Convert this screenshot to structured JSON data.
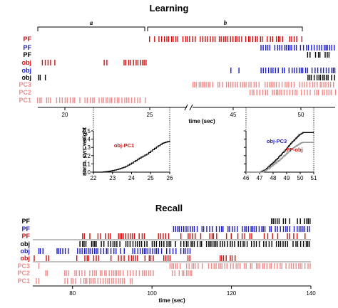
{
  "colors": {
    "pf": "#d01010",
    "pf_blue": "#1a1acc",
    "black": "#000000",
    "pink": "#f08a8a",
    "grey": "#999999"
  },
  "chart_data": [
    {
      "type": "raster",
      "title": "Learning",
      "phases": [
        {
          "label": "a",
          "x_range": [
            18.5,
            25
          ]
        },
        {
          "label": "b",
          "x_range": [
            25,
            50
          ]
        }
      ],
      "rows": [
        {
          "label": "PF",
          "color": "pf"
        },
        {
          "label": "PF",
          "color": "pf_blue"
        },
        {
          "label": "PF",
          "color": "black"
        },
        {
          "label": "obj",
          "color": "pf"
        },
        {
          "label": "obj",
          "color": "pf_blue"
        },
        {
          "label": "obj",
          "color": "black"
        },
        {
          "label": "PC3",
          "color": "pink"
        },
        {
          "label": "PC2",
          "color": "pink"
        },
        {
          "label": "PC1",
          "color": "pink"
        }
      ],
      "segments": [
        {
          "x_range": [
            18.5,
            25.2
          ],
          "ticks": [
            "20",
            "25"
          ],
          "tick_values": [
            20,
            25
          ]
        },
        {
          "x_range": [
            41,
            51
          ],
          "ticks": [
            "45",
            "50"
          ],
          "tick_values": [
            45,
            50
          ]
        }
      ],
      "xlabel": "time (sec)"
    },
    {
      "type": "line",
      "ylabel": "norm. syn. weight",
      "xlim": [
        22,
        26
      ],
      "ylim": [
        0,
        0.5
      ],
      "xticks": [
        "22",
        "23",
        "24",
        "25",
        "26"
      ],
      "yticks": [
        "0.0",
        "0.1",
        "0.2",
        "0.3",
        "0.4",
        "0.5"
      ],
      "series": [
        {
          "name": "obj-PC1",
          "color": "pf",
          "x": [
            22,
            22.4,
            22.8,
            23.2,
            23.6,
            24.0,
            24.4,
            24.8,
            25.2,
            25.6,
            26.0
          ],
          "y": [
            0,
            0,
            0.01,
            0.03,
            0.06,
            0.11,
            0.17,
            0.22,
            0.29,
            0.35,
            0.38
          ]
        }
      ]
    },
    {
      "type": "line",
      "xlim": [
        46,
        51
      ],
      "ylim": [
        0,
        0.5
      ],
      "xticks": [
        "46",
        "47",
        "48",
        "49",
        "50",
        "51"
      ],
      "series": [
        {
          "name": "obj-PC3",
          "color": "pf_blue",
          "x": [
            46,
            47,
            47.4,
            47.8,
            48.2,
            48.6,
            49.0,
            49.3,
            49.6,
            49.9,
            50.2,
            51
          ],
          "y": [
            0,
            0,
            0.03,
            0.09,
            0.15,
            0.22,
            0.29,
            0.35,
            0.4,
            0.45,
            0.48,
            0.48
          ]
        },
        {
          "name": "PF-obj",
          "color": "pf",
          "x": [
            46,
            47.2,
            47.6,
            48.0,
            48.4,
            48.8,
            49.2,
            49.6,
            50.0,
            50.2,
            51
          ],
          "y": [
            0,
            0,
            0.04,
            0.09,
            0.14,
            0.2,
            0.26,
            0.31,
            0.35,
            0.36,
            0.36
          ]
        }
      ]
    },
    {
      "type": "raster",
      "title": "Recall",
      "rows": [
        {
          "label": "PF",
          "color": "black"
        },
        {
          "label": "PF",
          "color": "pf_blue"
        },
        {
          "label": "PF",
          "color": "pf"
        },
        {
          "label": "obj",
          "color": "black"
        },
        {
          "label": "obj",
          "color": "pf_blue"
        },
        {
          "label": "obj",
          "color": "pf"
        },
        {
          "label": "PC3",
          "color": "pink"
        },
        {
          "label": "PC2",
          "color": "pink"
        },
        {
          "label": "PC1",
          "color": "pink"
        }
      ],
      "xlim": [
        70,
        140
      ],
      "xticks": [
        "80",
        "100",
        "120",
        "140"
      ],
      "xlabel": "time (sec)"
    }
  ]
}
